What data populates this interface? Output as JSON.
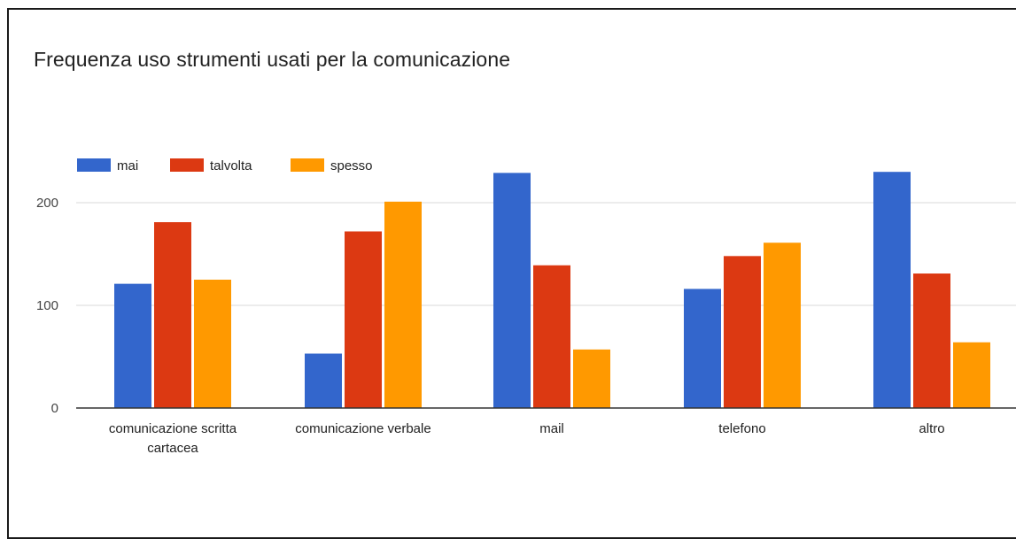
{
  "chart_data": {
    "type": "bar",
    "title": "Frequenza uso strumenti usati per la comunicazione",
    "xlabel": "",
    "ylabel": "",
    "categories": [
      [
        "comunicazione scritta",
        "cartacea"
      ],
      [
        "comunicazione verbale"
      ],
      [
        "mail"
      ],
      [
        "telefono"
      ],
      [
        "altro"
      ]
    ],
    "series": [
      {
        "name": "mai",
        "color": "#3366cc",
        "values": [
          121,
          53,
          229,
          116,
          230
        ]
      },
      {
        "name": "talvolta",
        "color": "#dc3912",
        "values": [
          181,
          172,
          139,
          148,
          131
        ]
      },
      {
        "name": "spesso",
        "color": "#ff9900",
        "values": [
          125,
          201,
          57,
          161,
          64
        ]
      }
    ],
    "ylim": [
      0,
      250
    ],
    "yticks": [
      0,
      100,
      200
    ],
    "grid": true,
    "legend_position": "top-left"
  }
}
